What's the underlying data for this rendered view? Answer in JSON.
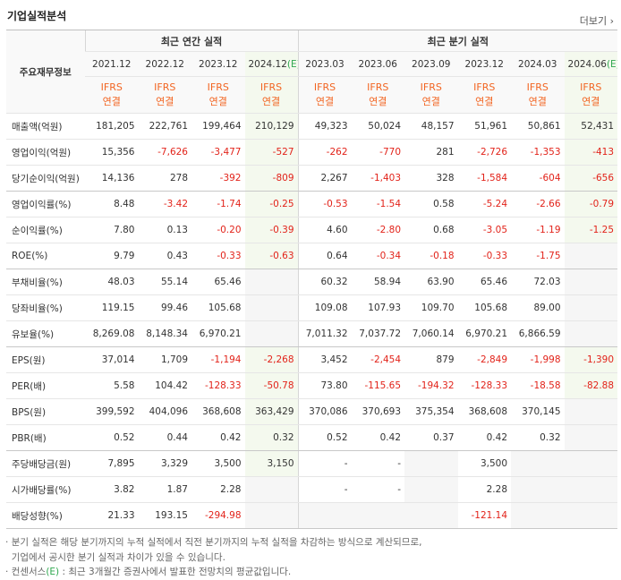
{
  "header": {
    "title": "기업실적분석",
    "more": "더보기"
  },
  "table": {
    "corner": "주요재무정보",
    "groups": [
      {
        "label": "최근 연간 실적",
        "span": 4
      },
      {
        "label": "최근 분기 실적",
        "span": 6
      }
    ],
    "periods": [
      {
        "date": "2021.12",
        "basis": "IFRS",
        "scope": "연결"
      },
      {
        "date": "2022.12",
        "basis": "IFRS",
        "scope": "연결"
      },
      {
        "date": "2023.12",
        "basis": "IFRS",
        "scope": "연결"
      },
      {
        "date": "2024.12",
        "mark": "(E)",
        "basis": "IFRS",
        "scope": "연결"
      },
      {
        "date": "2023.03",
        "basis": "IFRS",
        "scope": "연결"
      },
      {
        "date": "2023.06",
        "basis": "IFRS",
        "scope": "연결"
      },
      {
        "date": "2023.09",
        "basis": "IFRS",
        "scope": "연결"
      },
      {
        "date": "2023.12",
        "basis": "IFRS",
        "scope": "연결"
      },
      {
        "date": "2024.03",
        "basis": "IFRS",
        "scope": "연결"
      },
      {
        "date": "2024.06",
        "mark": "(E)",
        "basis": "IFRS",
        "scope": "연결"
      }
    ],
    "sections": [
      [
        {
          "label": "매출액(억원)",
          "values": [
            "181,205",
            "222,761",
            "199,464",
            "210,129",
            "49,323",
            "50,024",
            "48,157",
            "51,961",
            "50,861",
            "52,431"
          ]
        },
        {
          "label": "영업이익(억원)",
          "values": [
            "15,356",
            "-7,626",
            "-3,477",
            "-527",
            "-262",
            "-770",
            "281",
            "-2,726",
            "-1,353",
            "-413"
          ]
        },
        {
          "label": "당기순이익(억원)",
          "values": [
            "14,136",
            "278",
            "-392",
            "-809",
            "2,267",
            "-1,403",
            "328",
            "-1,584",
            "-604",
            "-656"
          ]
        }
      ],
      [
        {
          "label": "영업이익률(%)",
          "values": [
            "8.48",
            "-3.42",
            "-1.74",
            "-0.25",
            "-0.53",
            "-1.54",
            "0.58",
            "-5.24",
            "-2.66",
            "-0.79"
          ]
        },
        {
          "label": "순이익률(%)",
          "values": [
            "7.80",
            "0.13",
            "-0.20",
            "-0.39",
            "4.60",
            "-2.80",
            "0.68",
            "-3.05",
            "-1.19",
            "-1.25"
          ]
        },
        {
          "label": "ROE(%)",
          "values": [
            "9.79",
            "0.43",
            "-0.33",
            "-0.63",
            "0.64",
            "-0.34",
            "-0.18",
            "-0.33",
            "-1.75",
            null
          ]
        }
      ],
      [
        {
          "label": "부채비율(%)",
          "values": [
            "48.03",
            "55.14",
            "65.46",
            null,
            "60.32",
            "58.94",
            "63.90",
            "65.46",
            "72.03",
            null
          ]
        },
        {
          "label": "당좌비율(%)",
          "values": [
            "119.15",
            "99.46",
            "105.68",
            null,
            "109.08",
            "107.93",
            "109.70",
            "105.68",
            "89.00",
            null
          ]
        },
        {
          "label": "유보율(%)",
          "values": [
            "8,269.08",
            "8,148.34",
            "6,970.21",
            null,
            "7,011.32",
            "7,037.72",
            "7,060.14",
            "6,970.21",
            "6,866.59",
            null
          ]
        }
      ],
      [
        {
          "label": "EPS(원)",
          "values": [
            "37,014",
            "1,709",
            "-1,194",
            "-2,268",
            "3,452",
            "-2,454",
            "879",
            "-2,849",
            "-1,998",
            "-1,390"
          ]
        },
        {
          "label": "PER(배)",
          "values": [
            "5.58",
            "104.42",
            "-128.33",
            "-50.78",
            "73.80",
            "-115.65",
            "-194.32",
            "-128.33",
            "-18.58",
            "-82.88"
          ]
        },
        {
          "label": "BPS(원)",
          "values": [
            "399,592",
            "404,096",
            "368,608",
            "363,429",
            "370,086",
            "370,693",
            "375,354",
            "368,608",
            "370,145",
            null
          ]
        },
        {
          "label": "PBR(배)",
          "values": [
            "0.52",
            "0.44",
            "0.42",
            "0.32",
            "0.52",
            "0.42",
            "0.37",
            "0.42",
            "0.32",
            null
          ]
        }
      ],
      [
        {
          "label": "주당배당금(원)",
          "values": [
            "7,895",
            "3,329",
            "3,500",
            "3,150",
            "-",
            "-",
            null,
            "3,500",
            null,
            null
          ]
        },
        {
          "label": "시가배당률(%)",
          "values": [
            "3.82",
            "1.87",
            "2.28",
            null,
            "-",
            "-",
            null,
            "2.28",
            null,
            null
          ]
        },
        {
          "label": "배당성향(%)",
          "values": [
            "21.33",
            "193.15",
            "-294.98",
            null,
            null,
            null,
            null,
            "-121.14",
            null,
            null
          ]
        }
      ]
    ]
  },
  "footnotes": [
    {
      "parts": [
        "분기 실적은 해당 분기까지의 누적 실적에서 직전 분기까지의 누적 실적을 차감하는 방식으로 계산되므로,"
      ]
    },
    {
      "parts": [
        "기업에서 공시한 분기 실적과 차이가 있을 수 있습니다."
      ],
      "continued": true
    },
    {
      "parts": [
        "컨센서스",
        "(E)",
        " : 최근 3개월간 증권사에서 발표한 전망치의 평균값입니다."
      ]
    }
  ]
}
